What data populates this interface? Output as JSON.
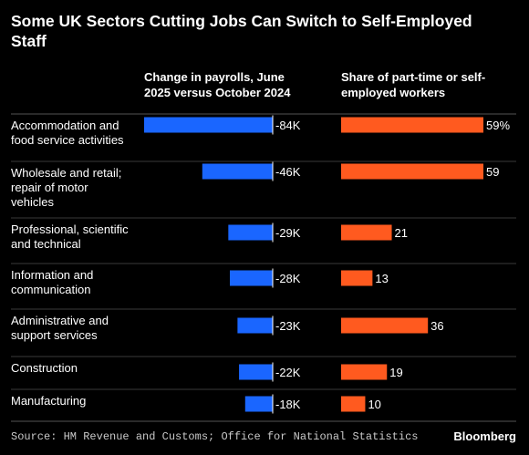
{
  "title": "Some UK Sectors Cutting Jobs Can Switch to Self-Employed Staff",
  "columns": {
    "payrolls": "Change in payrolls, June 2025 versus October 2024",
    "share": "Share of part-time or self-employed workers"
  },
  "source": "Source: HM Revenue and Customs; Office for National Statistics",
  "logo": "Bloomberg",
  "chart_data": {
    "type": "bar",
    "categories": [
      [
        "Accommodation and",
        "food service activities"
      ],
      [
        "Wholesale and retail;",
        "repair of motor",
        "vehicles"
      ],
      [
        "Professional, scientific",
        "and technical"
      ],
      [
        "Information and",
        "communication"
      ],
      [
        "Administrative and",
        "support services"
      ],
      [
        "Construction"
      ],
      [
        "Manufacturing"
      ]
    ],
    "series": [
      {
        "name": "Change in payrolls, June 2025 versus October 2024",
        "values": [
          -84,
          -46,
          -29,
          -28,
          -23,
          -22,
          -18
        ],
        "labels": [
          "-84K",
          "-46K",
          "-29K",
          "-28K",
          "-23K",
          "-22K",
          "-18K"
        ],
        "color": "#1a66ff"
      },
      {
        "name": "Share of part-time or self-employed workers",
        "values": [
          59,
          59,
          21,
          13,
          36,
          19,
          10
        ],
        "labels": [
          "59%",
          "59",
          "21",
          "13",
          "36",
          "19",
          "10"
        ],
        "color": "#ff5a1f"
      }
    ],
    "grid": false
  }
}
